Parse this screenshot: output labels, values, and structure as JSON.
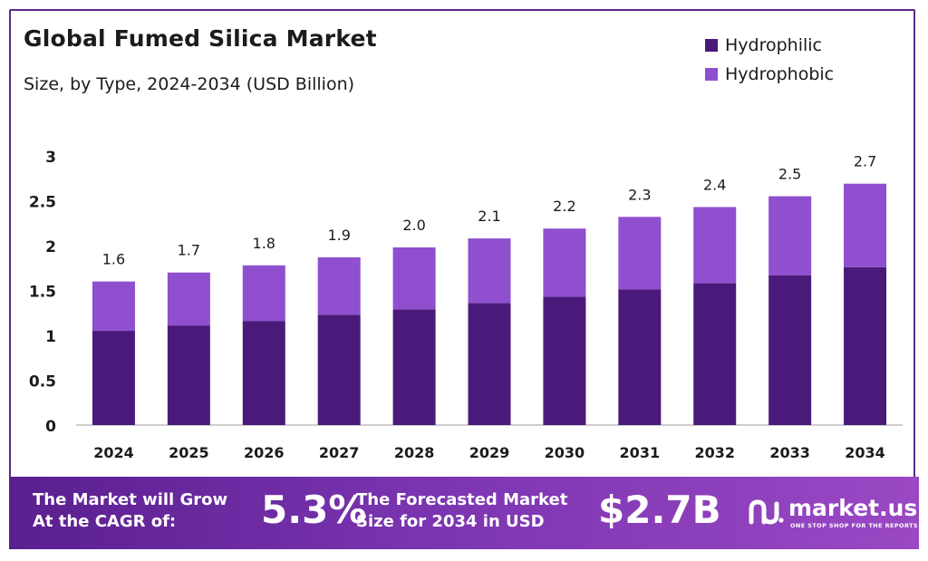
{
  "header": {
    "title": "Global Fumed Silica Market",
    "subtitle": "Size, by Type, 2024-2034 (USD Billion)"
  },
  "legend": {
    "items": [
      {
        "label": "Hydrophilic",
        "color": "#4a1a7a"
      },
      {
        "label": "Hydrophobic",
        "color": "#8f4fcf"
      }
    ]
  },
  "chart_data": {
    "type": "bar",
    "stacked": true,
    "categories": [
      "2024",
      "2025",
      "2026",
      "2027",
      "2028",
      "2029",
      "2030",
      "2031",
      "2032",
      "2033",
      "2034"
    ],
    "series": [
      {
        "name": "Hydrophilic",
        "color": "#4a1a7a",
        "values": [
          1.05,
          1.11,
          1.16,
          1.23,
          1.29,
          1.36,
          1.43,
          1.51,
          1.58,
          1.67,
          1.76
        ]
      },
      {
        "name": "Hydrophobic",
        "color": "#8f4fcf",
        "values": [
          0.55,
          0.59,
          0.62,
          0.64,
          0.69,
          0.72,
          0.76,
          0.81,
          0.85,
          0.88,
          0.93
        ]
      }
    ],
    "totals": [
      "1.6",
      "1.7",
      "1.8",
      "1.9",
      "2.0",
      "2.1",
      "2.2",
      "2.3",
      "2.4",
      "2.5",
      "2.7"
    ],
    "yticks": [
      "0",
      "0.5",
      "1",
      "1.5",
      "2",
      "2.5",
      "3"
    ],
    "ylim": [
      0,
      3
    ],
    "grid": false
  },
  "footer": {
    "cagr_label_line1": "The Market will Grow",
    "cagr_label_line2": "At the CAGR of:",
    "cagr_value": "5.3%",
    "forecast_label_line1": "The Forecasted Market",
    "forecast_label_line2": "Size for 2034 in USD",
    "forecast_value": "$2.7B",
    "brand_name": "market.us",
    "brand_tagline": "ONE STOP SHOP FOR THE REPORTS"
  }
}
